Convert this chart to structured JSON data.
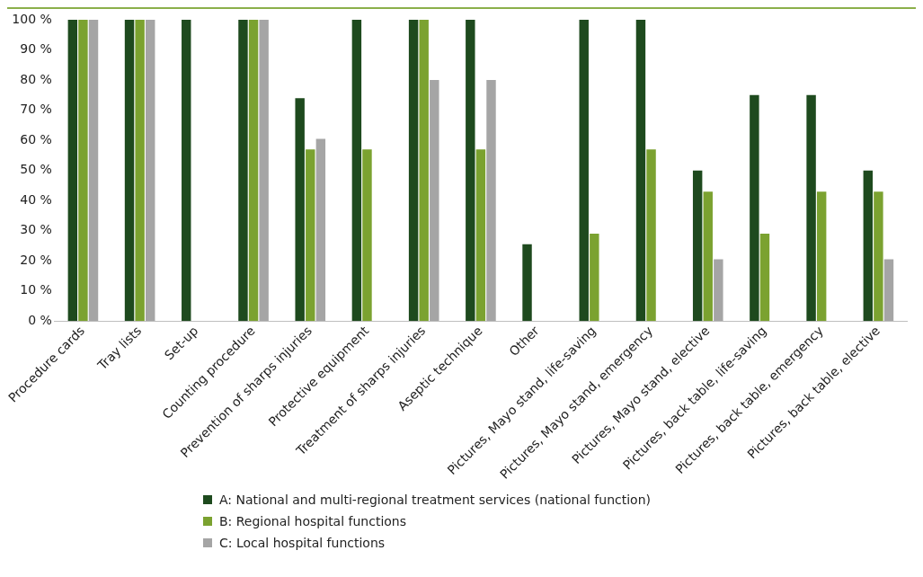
{
  "chart_data": {
    "type": "bar",
    "categories": [
      "Procedure cards",
      "Tray lists",
      "Set-up",
      "Counting procedure",
      "Prevention of sharps injuries",
      "Protective equipment",
      "Treatment of sharps injuries",
      "Aseptic technique",
      "Other",
      "Pictures, Mayo stand, life-saving",
      "Pictures, Mayo stand, emergency",
      "Pictures, Mayo stand, elective",
      "Pictures, back table, life-saving",
      "Pictures, back table, emergency",
      "Pictures, back table, elective"
    ],
    "series": [
      {
        "name": "A: National and multi-regional treatment services (national function)",
        "color": "#1e4a1e",
        "values": [
          100,
          100,
          100,
          100,
          74,
          100,
          100,
          100,
          25.5,
          100,
          100,
          50,
          75,
          75,
          50
        ]
      },
      {
        "name": "B: Regional hospital functions",
        "color": "#7ba230",
        "values": [
          100,
          100,
          0,
          100,
          57,
          57,
          100,
          57,
          0,
          29,
          57,
          43,
          29,
          43,
          43
        ]
      },
      {
        "name": "C: Local hospital functions",
        "color": "#a5a5a5",
        "values": [
          100,
          100,
          0,
          100,
          60.5,
          0,
          80,
          80,
          0,
          0,
          0,
          20.5,
          0,
          0,
          20.5
        ]
      }
    ],
    "ylim": [
      0,
      100
    ],
    "yticks": [
      {
        "value": 0,
        "label": "0 %"
      },
      {
        "value": 10,
        "label": "10 %"
      },
      {
        "value": 20,
        "label": "20 %"
      },
      {
        "value": 30,
        "label": "30 %"
      },
      {
        "value": 40,
        "label": "40 %"
      },
      {
        "value": 50,
        "label": "50 %"
      },
      {
        "value": 60,
        "label": "60 %"
      },
      {
        "value": 70,
        "label": "70 %"
      },
      {
        "value": 80,
        "label": "80 %"
      },
      {
        "value": 90,
        "label": "90 %"
      },
      {
        "value": 100,
        "label": "100 %"
      }
    ],
    "grid": false,
    "legend": "bottom"
  }
}
